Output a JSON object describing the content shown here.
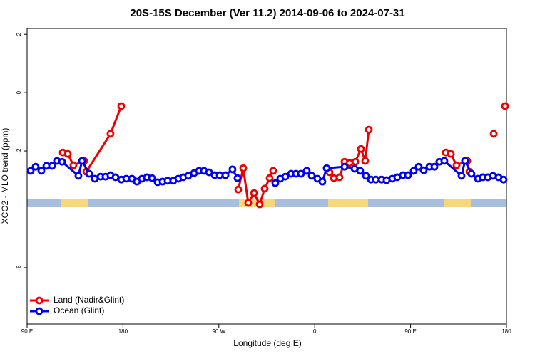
{
  "chart_data": {
    "type": "line",
    "title": "20S-15S December (Ver 11.2)   2014-09-06 to 2024-07-31",
    "xlabel": "Longitude (deg E)",
    "ylabel": "XCO2 - MLO trend (ppm)",
    "xlim": [
      90,
      540
    ],
    "ylim": [
      -7.93,
      2.2
    ],
    "xticks": [
      {
        "value": 90,
        "label": "90 E"
      },
      180,
      {
        "value": 270,
        "label": "90 W"
      },
      {
        "value": 360,
        "label": "0"
      },
      {
        "value": 450,
        "label": "90 E"
      },
      {
        "value": 540,
        "label": "180"
      }
    ],
    "yticks": [
      2,
      0,
      -2,
      -6
    ],
    "legend": "bottom-left",
    "series": [
      {
        "name": "Land (Nadir&Glint)",
        "color": "#ee0000",
        "x": [
          123.5,
          128.2,
          133.5,
          143.6,
          145.6,
          168.3,
          178.4,
          null,
          288.2,
          292.9,
          297.6,
          303.0,
          308.3,
          313.0,
          317.7,
          321.0,
          null,
          373.9,
          377.9,
          383.3,
          388.0,
          392.7,
          398.1,
          403.4,
          407.4,
          410.8,
          null,
          483.1,
          487.8,
          493.1,
          503.2,
          505.2,
          null,
          528.0,
          null,
          538.7
        ],
        "values": [
          -2.05,
          -2.1,
          -2.49,
          -2.34,
          -2.71,
          -1.41,
          -0.46,
          null,
          -3.32,
          -2.59,
          -3.78,
          -3.44,
          -3.83,
          -3.29,
          -2.93,
          -2.68,
          null,
          -2.73,
          -2.93,
          -2.9,
          -2.37,
          -2.41,
          -2.37,
          -1.93,
          -2.34,
          -1.27,
          null,
          -2.05,
          -2.1,
          -2.49,
          -2.34,
          -2.71,
          null,
          -1.41,
          null,
          -0.46
        ]
      },
      {
        "name": "Ocean (Glint)",
        "color": "#0000ee",
        "x": [
          93.3,
          98.0,
          103.4,
          108.1,
          113.4,
          118.1,
          122.8,
          138.2,
          141.6,
          148.3,
          153.6,
          159.0,
          163.6,
          168.3,
          173.0,
          178.4,
          183.1,
          188.4,
          193.1,
          197.8,
          202.5,
          207.2,
          212.5,
          217.2,
          221.9,
          227.3,
          232.0,
          236.6,
          241.3,
          246.7,
          251.4,
          256.1,
          260.8,
          266.1,
          270.8,
          276.2,
          282.8,
          287.5,
          null,
          323.0,
          327.7,
          332.4,
          337.8,
          342.4,
          347.1,
          352.5,
          357.2,
          362.5,
          367.2,
          371.2,
          388.0,
          397.4,
          402.7,
          408.1,
          412.8,
          417.4,
          422.8,
          427.5,
          432.8,
          437.5,
          442.9,
          447.6,
          452.9,
          457.6,
          462.3,
          467.7,
          472.4,
          477.0,
          481.7,
          497.8,
          501.1,
          507.1,
          513.2,
          517.9,
          522.6,
          527.3,
          532.6,
          537.3
        ],
        "values": [
          -2.68,
          -2.54,
          -2.68,
          -2.51,
          -2.51,
          -2.34,
          -2.37,
          -2.85,
          -2.34,
          -2.78,
          -2.95,
          -2.88,
          -2.88,
          -2.83,
          -2.9,
          -2.98,
          -2.95,
          -2.95,
          -3.05,
          -2.95,
          -2.9,
          -2.93,
          -3.07,
          -3.05,
          -3.02,
          -3.02,
          -2.95,
          -2.9,
          -2.85,
          -2.76,
          -2.68,
          -2.68,
          -2.73,
          -2.83,
          -2.83,
          -2.83,
          -2.63,
          -2.93,
          null,
          -3.1,
          -2.95,
          -2.88,
          -2.78,
          -2.78,
          -2.78,
          -2.68,
          -2.85,
          -2.95,
          -3.05,
          -2.59,
          -2.54,
          -2.61,
          -2.68,
          -2.85,
          -2.98,
          -2.98,
          -2.98,
          -3.0,
          -2.95,
          -2.9,
          -2.83,
          -2.83,
          -2.68,
          -2.54,
          -2.66,
          -2.54,
          -2.54,
          -2.37,
          -2.34,
          -2.85,
          -2.34,
          -2.78,
          -2.95,
          -2.9,
          -2.9,
          -2.85,
          -2.9,
          -2.98
        ]
      }
    ]
  }
}
